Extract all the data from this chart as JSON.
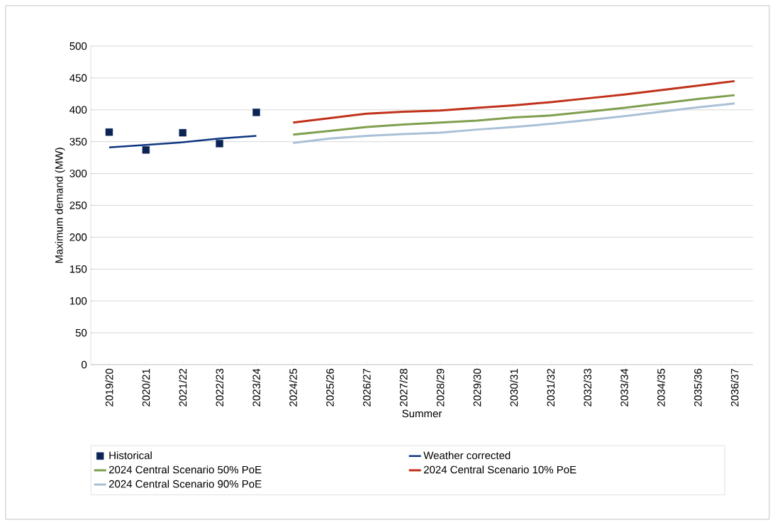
{
  "chart_data": {
    "type": "line",
    "xlabel": "Summer",
    "ylabel": "Maximum demand (MW)",
    "categories": [
      "2019/20",
      "2020/21",
      "2021/22",
      "2022/23",
      "2023/24",
      "2024/25",
      "2025/26",
      "2026/27",
      "2027/28",
      "2028/29",
      "2029/30",
      "2030/31",
      "2031/32",
      "2032/33",
      "2033/34",
      "2034/35",
      "2035/36",
      "2036/37"
    ],
    "ylim": [
      0,
      500
    ],
    "yticks": [
      0,
      50,
      100,
      150,
      200,
      250,
      300,
      350,
      400,
      450,
      500
    ],
    "grid": "y",
    "legend": "bottom",
    "series": [
      {
        "name": "Historical",
        "type": "scatter",
        "marker": "square",
        "color": "#0b2454",
        "values": [
          365,
          337,
          364,
          347,
          396,
          null,
          null,
          null,
          null,
          null,
          null,
          null,
          null,
          null,
          null,
          null,
          null,
          null
        ]
      },
      {
        "name": "Weather corrected",
        "color": "#0d3580",
        "values": [
          341,
          345,
          349,
          355,
          359,
          null,
          null,
          null,
          null,
          null,
          null,
          null,
          null,
          null,
          null,
          null,
          null,
          null
        ]
      },
      {
        "name": "2024 Central Scenario 50% PoE",
        "color": "#7e9f4e",
        "values": [
          null,
          null,
          null,
          null,
          null,
          361,
          367,
          373,
          377,
          380,
          383,
          388,
          391,
          397,
          403,
          410,
          417,
          423
        ]
      },
      {
        "name": "2024 Central Scenario 10% PoE",
        "color": "#c0311a",
        "values": [
          null,
          null,
          null,
          null,
          null,
          380,
          387,
          394,
          397,
          399,
          403,
          407,
          412,
          418,
          424,
          431,
          438,
          445
        ]
      },
      {
        "name": "2024 Central Scenario 90% PoE",
        "color": "#a9c0d6",
        "values": [
          null,
          null,
          null,
          null,
          null,
          348,
          355,
          359,
          362,
          364,
          369,
          373,
          378,
          384,
          390,
          397,
          404,
          410
        ]
      }
    ]
  }
}
